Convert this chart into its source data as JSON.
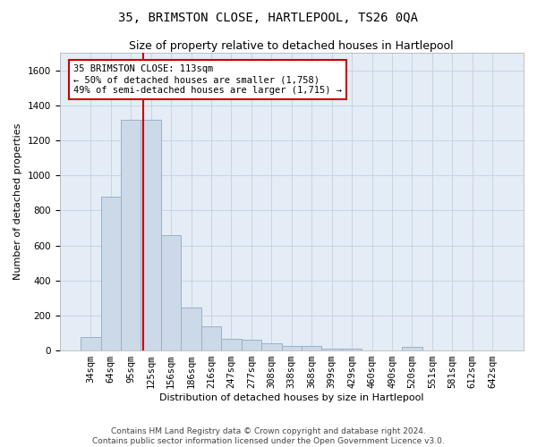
{
  "title": "35, BRIMSTON CLOSE, HARTLEPOOL, TS26 0QA",
  "subtitle": "Size of property relative to detached houses in Hartlepool",
  "xlabel": "Distribution of detached houses by size in Hartlepool",
  "ylabel": "Number of detached properties",
  "bar_color": "#ccd9e8",
  "bar_edgecolor": "#9ab0c8",
  "grid_color": "#c5cfe0",
  "bg_color": "#e4ecf5",
  "categories": [
    "34sqm",
    "64sqm",
    "95sqm",
    "125sqm",
    "156sqm",
    "186sqm",
    "216sqm",
    "247sqm",
    "277sqm",
    "308sqm",
    "338sqm",
    "368sqm",
    "399sqm",
    "429sqm",
    "460sqm",
    "490sqm",
    "520sqm",
    "551sqm",
    "581sqm",
    "612sqm",
    "642sqm"
  ],
  "values": [
    75,
    880,
    1320,
    1320,
    660,
    245,
    140,
    65,
    60,
    40,
    25,
    25,
    12,
    12,
    0,
    0,
    20,
    0,
    0,
    0,
    0
  ],
  "ylim": [
    0,
    1700
  ],
  "yticks": [
    0,
    200,
    400,
    600,
    800,
    1000,
    1200,
    1400,
    1600
  ],
  "vline_pos": 2.6,
  "annotation_text": "35 BRIMSTON CLOSE: 113sqm\n← 50% of detached houses are smaller (1,758)\n49% of semi-detached houses are larger (1,715) →",
  "annotation_box_facecolor": "#ffffff",
  "annotation_box_edgecolor": "#cc0000",
  "footer1": "Contains HM Land Registry data © Crown copyright and database right 2024.",
  "footer2": "Contains public sector information licensed under the Open Government Licence v3.0.",
  "title_fontsize": 10,
  "subtitle_fontsize": 9,
  "ylabel_fontsize": 8,
  "xlabel_fontsize": 8,
  "tick_fontsize": 7.5,
  "annot_fontsize": 7.5,
  "footer_fontsize": 6.5
}
